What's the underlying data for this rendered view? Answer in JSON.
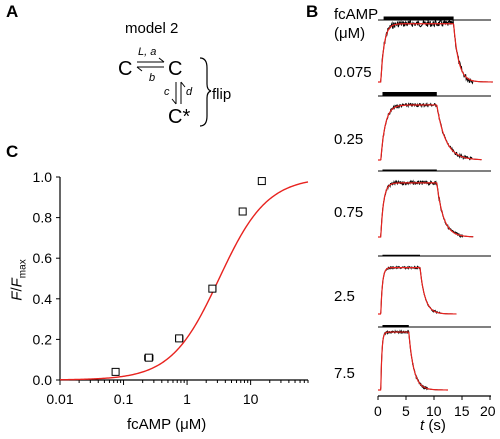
{
  "panel_labels": {
    "a": "A",
    "b": "B",
    "c": "C"
  },
  "model": {
    "title": "model 2",
    "state_c1": "C",
    "state_c2": "C",
    "state_cstar": "C*",
    "rate_forward": "L, a",
    "rate_back": "b",
    "rate_down": "c",
    "rate_up": "d",
    "group_label": "flip"
  },
  "panel_b": {
    "header_line1": "fcAMP",
    "header_line2": "(μM)",
    "concentrations": [
      "0.075",
      "0.25",
      "0.75",
      "2.5",
      "7.5"
    ],
    "xlabel_var": "t",
    "xlabel_unit": " (s)",
    "xticks": [
      "0",
      "5",
      "10",
      "15",
      "20"
    ],
    "colors": {
      "data": "#000000",
      "fit": "#e8231f"
    }
  },
  "chart_data": {
    "type": "scatter",
    "title": "",
    "xlabel": "fcAMP (μM)",
    "ylabel": "F/Fmax",
    "xscale": "log",
    "xlim": [
      0.01,
      80
    ],
    "ylim": [
      0,
      1
    ],
    "xticks": [
      "0.01",
      "0.1",
      "1",
      "10"
    ],
    "yticks": [
      "0.0",
      "0.2",
      "0.4",
      "0.6",
      "0.8",
      "1.0"
    ],
    "points": [
      {
        "x": 0.075,
        "y": 0.04,
        "xerr_low": 0.068,
        "xerr_high": 0.082
      },
      {
        "x": 0.25,
        "y": 0.11,
        "xerr_low": 0.215,
        "xerr_high": 0.29
      },
      {
        "x": 0.75,
        "y": 0.205,
        "xerr_low": 0.66,
        "xerr_high": 0.86
      },
      {
        "x": 2.5,
        "y": 0.45,
        "xerr_low": 2.25,
        "xerr_high": 2.85
      },
      {
        "x": 7.5,
        "y": 0.83,
        "xerr_low": 6.7,
        "xerr_high": 8.3
      },
      {
        "x": 15,
        "y": 0.98,
        "xerr_low": 13.5,
        "xerr_high": 16.5
      }
    ],
    "fit": {
      "name": "",
      "ec50": 3.2,
      "hill": 1.15,
      "max": 1.0,
      "color": "#e8231f"
    }
  }
}
